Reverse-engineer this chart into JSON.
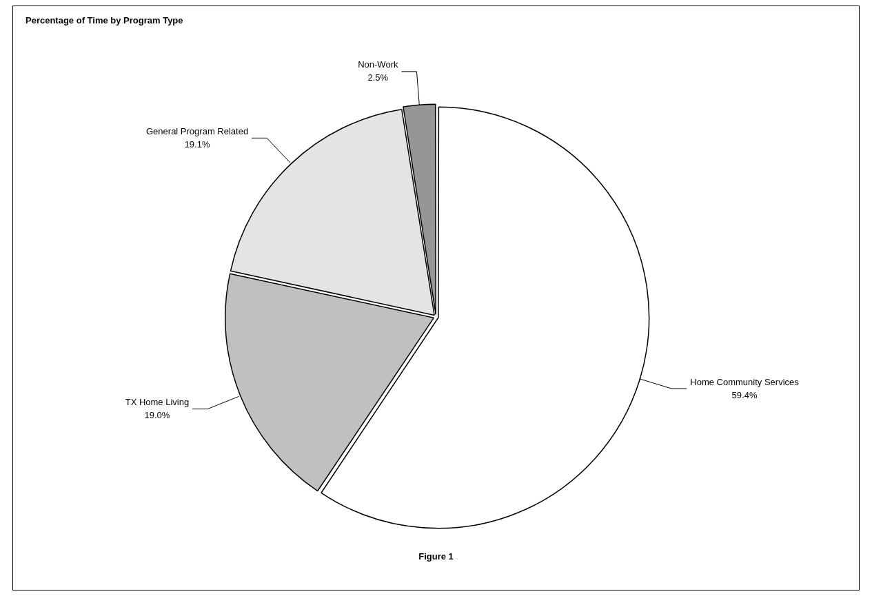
{
  "chart_data": {
    "type": "pie",
    "title": "Percentage of Time by Program Type",
    "categories": [
      "Home Community Services",
      "TX Home Living",
      "General Program Related",
      "Non-Work"
    ],
    "values": [
      59.4,
      19.0,
      19.1,
      2.5
    ],
    "colors": [
      "#ffffff",
      "#c0c0c0",
      "#e4e4e4",
      "#969696"
    ],
    "value_labels": [
      "59.4%",
      "19.0%",
      "19.1%",
      "2.5%"
    ],
    "legend": false,
    "annotations": [
      "Figure 1"
    ]
  }
}
